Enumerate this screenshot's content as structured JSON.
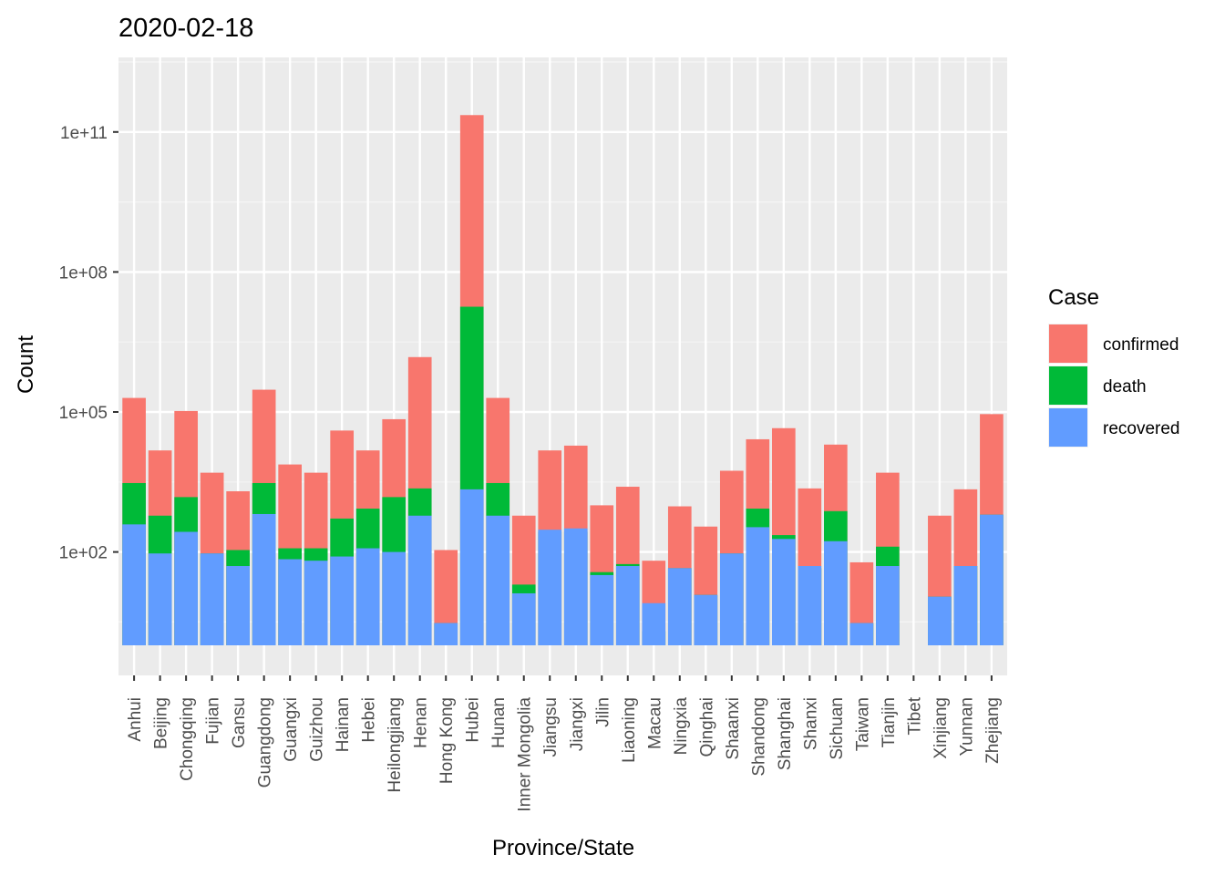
{
  "chart_data": {
    "type": "bar",
    "stacked": true,
    "title": "2020-02-18",
    "xlabel": "Province/State",
    "ylabel": "Count",
    "y_scale": "log10",
    "ylim": [
      1,
      1000000000000
    ],
    "y_ticks": [
      100,
      100000,
      100000000,
      100000000000
    ],
    "y_tick_labels": [
      "1e+02",
      "1e+05",
      "1e+08",
      "1e+11"
    ],
    "legend_position": "right",
    "legend_title": "Case",
    "categories": [
      "Anhui",
      "Beijing",
      "Chongqing",
      "Fujian",
      "Gansu",
      "Guangdong",
      "Guangxi",
      "Guizhou",
      "Hainan",
      "Hebei",
      "Heilongjiang",
      "Henan",
      "Hong Kong",
      "Hubei",
      "Hunan",
      "Inner Mongolia",
      "Jiangsu",
      "Jiangxi",
      "Jilin",
      "Liaoning",
      "Macau",
      "Ningxia",
      "Qinghai",
      "Shaanxi",
      "Shandong",
      "Shanghai",
      "Shanxi",
      "Sichuan",
      "Taiwan",
      "Tianjin",
      "Tibet",
      "Xinjiang",
      "Yunnan",
      "Zhejiang"
    ],
    "stack_order": [
      "recovered",
      "death",
      "confirmed"
    ],
    "series": [
      {
        "name": "confirmed",
        "color": "#F8766D",
        "cumulative_top": [
          200000,
          15000,
          105000,
          5000,
          2000,
          300000,
          7500,
          5000,
          40000,
          15000,
          70000,
          1500000,
          110,
          230000000000,
          200000,
          600,
          15000,
          19000,
          1000,
          2500,
          65,
          950,
          350,
          5500,
          26000,
          45000,
          2300,
          20000,
          60,
          5000,
          1,
          600,
          2200,
          90000
        ]
      },
      {
        "name": "death",
        "color": "#00BA38",
        "cumulative_top": [
          3000,
          600,
          1500,
          93,
          110,
          3000,
          120,
          120,
          520,
          850,
          1500,
          2300,
          3,
          18000000,
          3000,
          20,
          270,
          270,
          37,
          55,
          2,
          45,
          12,
          93,
          850,
          230,
          45,
          750,
          3,
          130,
          1,
          11,
          50,
          630
        ]
      },
      {
        "name": "recovered",
        "color": "#619CFF",
        "cumulative_top": [
          390,
          93,
          270,
          93,
          50,
          650,
          70,
          65,
          80,
          120,
          100,
          600,
          3,
          2200,
          600,
          13,
          300,
          320,
          32,
          50,
          8,
          45,
          12,
          93,
          340,
          190,
          50,
          170,
          3,
          50,
          1,
          11,
          50,
          630
        ]
      }
    ]
  }
}
